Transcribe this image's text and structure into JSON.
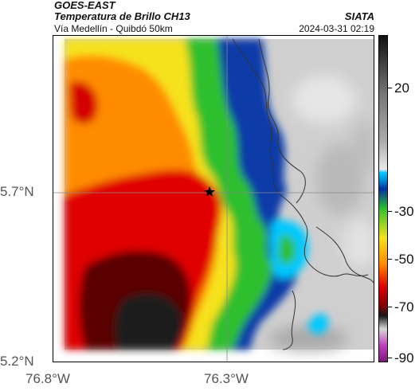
{
  "header": {
    "satellite": "GOES-EAST",
    "product": "Temperatura de Brillo CH13",
    "organization": "SIATA",
    "region": "Vía Medellín - Quibdó 50km",
    "timestamp": "2024-03-31 02:19"
  },
  "map": {
    "lat_labels": [
      "5.7°N",
      "5.2°N"
    ],
    "lon_labels": [
      "76.8°W",
      "76.3°W"
    ],
    "marker_icon": "star-icon",
    "palette": {
      "cold_black": "#1a1a1a",
      "dark_red": "#5a0000",
      "red": "#e00000",
      "orange": "#ff8c00",
      "yellow": "#f5e21c",
      "green": "#2fbf2f",
      "cyan": "#00c8ff",
      "blue": "#0030a0",
      "clear_gray": "#c9c9c9"
    }
  },
  "colorbar": {
    "labels": [
      "20",
      "-30",
      "-50",
      "-70",
      "-90"
    ]
  }
}
